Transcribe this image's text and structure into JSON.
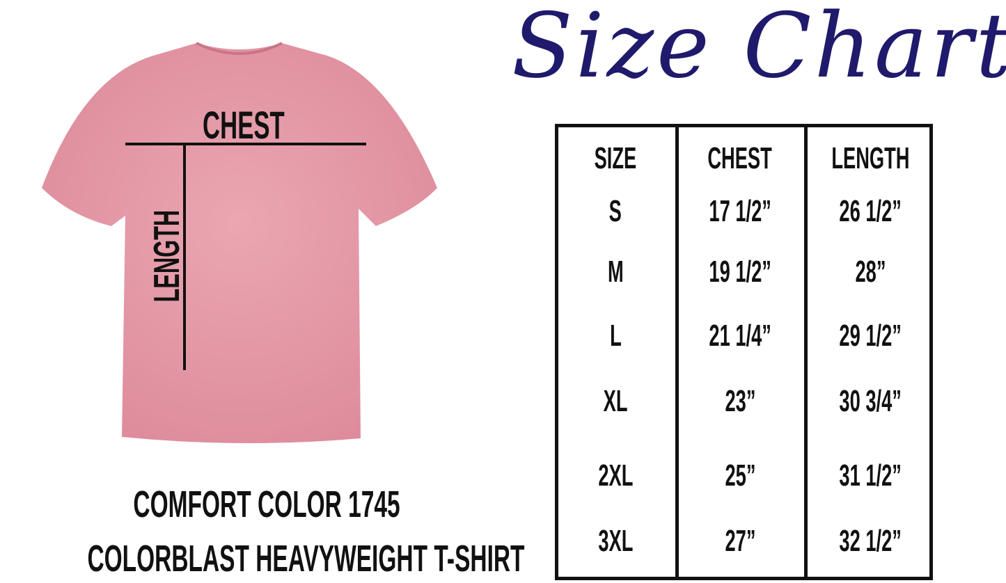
{
  "title": "Size Chart",
  "shirt": {
    "color": "#e79aa8",
    "chest_label": "CHEST",
    "length_label": "LENGTH"
  },
  "caption": {
    "line1": "COMFORT COLOR 1745",
    "line2": "COLORBLAST HEAVYWEIGHT T-SHIRT"
  },
  "table": {
    "headers": [
      "SIZE",
      "CHEST",
      "LENGTH"
    ],
    "rows": [
      [
        "S",
        "17 1/2”",
        "26 1/2”"
      ],
      [
        "M",
        "19 1/2”",
        "28”"
      ],
      [
        "L",
        "21 1/4”",
        "29 1/2”"
      ],
      [
        "XL",
        "23”",
        "30 3/4”"
      ],
      [
        "2XL",
        "25”",
        "31 1/2”"
      ],
      [
        "3XL",
        "27”",
        "32 1/2”"
      ]
    ]
  },
  "colors": {
    "title": "#1f1a6b",
    "text": "#111111"
  }
}
